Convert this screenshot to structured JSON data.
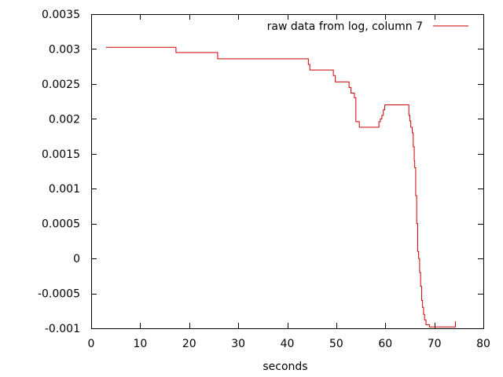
{
  "chart_data": {
    "type": "line",
    "step": true,
    "xlabel": "seconds",
    "ylabel": "",
    "xlim": [
      0,
      80
    ],
    "ylim": [
      -0.001,
      0.0035
    ],
    "xticks": [
      0,
      10,
      20,
      30,
      40,
      50,
      60,
      70,
      80
    ],
    "yticks": [
      -0.001,
      -0.0005,
      0,
      0.0005,
      0.001,
      0.0015,
      0.002,
      0.0025,
      0.003,
      0.0035
    ],
    "xtick_labels": [
      "0",
      "10",
      "20",
      "30",
      "40",
      "50",
      "60",
      "70",
      "80"
    ],
    "ytick_labels": [
      "-0.001",
      "-0.0005",
      "0",
      "0.0005",
      "0.001",
      "0.0015",
      "0.002",
      "0.0025",
      "0.003",
      "0.0035"
    ],
    "grid": false,
    "legend_position": "top-right",
    "series": [
      {
        "name": "raw data from log, column 7",
        "color": "#cc0000",
        "points": [
          [
            3.0,
            0.003025
          ],
          [
            17.3,
            0.003025
          ],
          [
            17.3,
            0.00295
          ],
          [
            25.8,
            0.00295
          ],
          [
            25.8,
            0.00286
          ],
          [
            44.3,
            0.00286
          ],
          [
            44.3,
            0.00278
          ],
          [
            44.6,
            0.00278
          ],
          [
            44.6,
            0.0027
          ],
          [
            49.4,
            0.0027
          ],
          [
            49.4,
            0.00262
          ],
          [
            49.8,
            0.00262
          ],
          [
            49.8,
            0.00253
          ],
          [
            52.6,
            0.00253
          ],
          [
            52.6,
            0.00245
          ],
          [
            53.0,
            0.00245
          ],
          [
            53.0,
            0.00237
          ],
          [
            53.7,
            0.00237
          ],
          [
            53.7,
            0.0023
          ],
          [
            54.0,
            0.0023
          ],
          [
            54.0,
            0.00196
          ],
          [
            54.7,
            0.00196
          ],
          [
            54.7,
            0.00188
          ],
          [
            58.7,
            0.00188
          ],
          [
            58.7,
            0.00196
          ],
          [
            59.0,
            0.00196
          ],
          [
            59.0,
            0.002
          ],
          [
            59.3,
            0.002
          ],
          [
            59.3,
            0.00205
          ],
          [
            59.6,
            0.00205
          ],
          [
            59.6,
            0.00213
          ],
          [
            59.9,
            0.00213
          ],
          [
            59.9,
            0.0022
          ],
          [
            64.8,
            0.0022
          ],
          [
            64.8,
            0.00205
          ],
          [
            65.0,
            0.00205
          ],
          [
            65.0,
            0.00197
          ],
          [
            65.2,
            0.00197
          ],
          [
            65.2,
            0.00188
          ],
          [
            65.5,
            0.00188
          ],
          [
            65.5,
            0.0018
          ],
          [
            65.7,
            0.0018
          ],
          [
            65.7,
            0.0016
          ],
          [
            65.9,
            0.0016
          ],
          [
            65.9,
            0.0014
          ],
          [
            66.0,
            0.0014
          ],
          [
            66.0,
            0.0013
          ],
          [
            66.2,
            0.0013
          ],
          [
            66.2,
            0.0009
          ],
          [
            66.4,
            0.0009
          ],
          [
            66.4,
            0.0005
          ],
          [
            66.6,
            0.0005
          ],
          [
            66.6,
            0.0001
          ],
          [
            66.8,
            0.0001
          ],
          [
            66.8,
            0.0
          ],
          [
            67.0,
            0.0
          ],
          [
            67.0,
            -0.0002
          ],
          [
            67.2,
            -0.0002
          ],
          [
            67.2,
            -0.0004
          ],
          [
            67.4,
            -0.0004
          ],
          [
            67.4,
            -0.0006
          ],
          [
            67.6,
            -0.0006
          ],
          [
            67.6,
            -0.0007
          ],
          [
            67.8,
            -0.0007
          ],
          [
            67.8,
            -0.0008
          ],
          [
            68.0,
            -0.0008
          ],
          [
            68.0,
            -0.00088
          ],
          [
            68.3,
            -0.00088
          ],
          [
            68.3,
            -0.00095
          ],
          [
            69.0,
            -0.00095
          ],
          [
            69.0,
            -0.00098
          ],
          [
            74.3,
            -0.00098
          ],
          [
            74.3,
            -0.0009
          ]
        ]
      }
    ]
  }
}
